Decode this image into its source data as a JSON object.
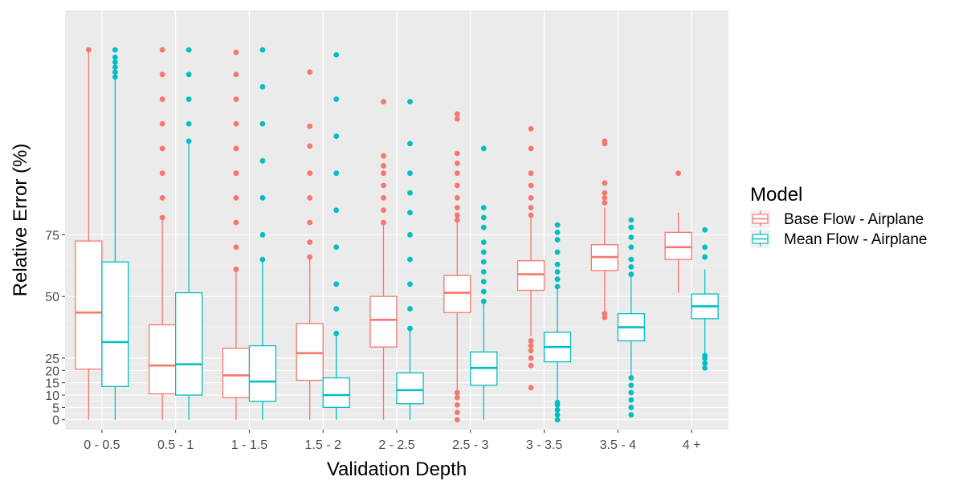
{
  "chart_data": {
    "type": "boxplot",
    "xlabel": "Validation Depth",
    "ylabel": "Relative Error (%)",
    "ylim": [
      -4,
      166
    ],
    "yticks": [
      0,
      5,
      10,
      15,
      20,
      25,
      50,
      75
    ],
    "grid": true,
    "legend_placement": "right",
    "legend_title": "Model",
    "categories": [
      "0 - 0.5",
      "0.5 - 1",
      "1 - 1.5",
      "1.5 - 2",
      "2 - 2.5",
      "2.5 - 3",
      "3 - 3.5",
      "3.5 - 4",
      "4 +"
    ],
    "series": [
      {
        "name": "Base Flow - Airplane",
        "color": "#F8766D",
        "boxes": [
          {
            "min": 0,
            "q1": 20.5,
            "median": 43.5,
            "q3": 72.5,
            "max": 150,
            "outliers": [
              150
            ]
          },
          {
            "min": 0,
            "q1": 10.5,
            "median": 22,
            "q3": 38.5,
            "max": 81,
            "outliers": [
              82,
              90,
              100,
              110,
              120,
              130,
              140,
              150
            ]
          },
          {
            "min": 0,
            "q1": 9,
            "median": 18,
            "q3": 29,
            "max": 60,
            "outliers": [
              61,
              70,
              80,
              90,
              100,
              110,
              120,
              130,
              140,
              149
            ]
          },
          {
            "min": 0,
            "q1": 16,
            "median": 27,
            "q3": 39,
            "max": 65,
            "outliers": [
              66,
              72,
              80,
              90,
              100,
              111,
              119,
              141
            ]
          },
          {
            "min": 0,
            "q1": 29.5,
            "median": 40.5,
            "q3": 50,
            "max": 79,
            "outliers": [
              80,
              85,
              90,
              95,
              100,
              103,
              107,
              129
            ]
          },
          {
            "min": 12,
            "q1": 43.5,
            "median": 51.5,
            "q3": 58.5,
            "max": 80,
            "outliers": [
              0,
              3,
              6,
              9,
              11,
              81,
              83,
              86,
              90,
              95,
              100,
              104,
              108,
              122,
              124
            ]
          },
          {
            "min": 34,
            "q1": 52.5,
            "median": 59,
            "q3": 64.5,
            "max": 82,
            "outliers": [
              13,
              22,
              25,
              28,
              30,
              32,
              83,
              86,
              90,
              95,
              100,
              110,
              118
            ]
          },
          {
            "min": 43,
            "q1": 60.5,
            "median": 66,
            "q3": 71,
            "max": 86,
            "outliers": [
              41.5,
              43,
              88,
              90,
              92,
              96,
              112,
              113
            ]
          },
          {
            "min": 51.5,
            "q1": 65,
            "median": 70,
            "q3": 76,
            "max": 84,
            "outliers": [
              100
            ]
          }
        ]
      },
      {
        "name": "Mean Flow - Airplane",
        "color": "#00BFC4",
        "boxes": [
          {
            "min": 0,
            "q1": 13.5,
            "median": 31.5,
            "q3": 64,
            "max": 139,
            "outliers": [
              139,
              141,
              143,
              145,
              147,
              150
            ]
          },
          {
            "min": 0,
            "q1": 10,
            "median": 22.5,
            "q3": 51.5,
            "max": 113,
            "outliers": [
              113,
              120,
              130,
              140,
              150
            ]
          },
          {
            "min": 0,
            "q1": 7.5,
            "median": 15.5,
            "q3": 30,
            "max": 64,
            "outliers": [
              65,
              75,
              90,
              105,
              120,
              135,
              150
            ]
          },
          {
            "min": 0,
            "q1": 5,
            "median": 10,
            "q3": 17,
            "max": 34,
            "outliers": [
              35,
              45,
              55,
              70,
              85,
              100,
              115,
              130,
              148
            ]
          },
          {
            "min": 0,
            "q1": 6.5,
            "median": 12,
            "q3": 19,
            "max": 36.5,
            "outliers": [
              37,
              45,
              55,
              65,
              75,
              84,
              92,
              100,
              112,
              129
            ]
          },
          {
            "min": 0,
            "q1": 14,
            "median": 21,
            "q3": 27.5,
            "max": 47,
            "outliers": [
              48,
              52,
              56,
              60,
              64,
              68,
              72,
              78,
              82,
              86,
              110
            ]
          },
          {
            "min": 0,
            "q1": 23.5,
            "median": 29.5,
            "q3": 35.5,
            "max": 53,
            "outliers": [
              0,
              2,
              4,
              6,
              7,
              54,
              57,
              60,
              63,
              68,
              73,
              76,
              79
            ]
          },
          {
            "min": 18,
            "q1": 32,
            "median": 37.5,
            "q3": 43,
            "max": 58,
            "outliers": [
              2,
              5,
              8,
              11,
              14,
              17,
              59,
              62,
              65,
              70,
              74,
              78,
              81
            ]
          },
          {
            "min": 27,
            "q1": 41,
            "median": 46,
            "q3": 51,
            "max": 61,
            "outliers": [
              21,
              23,
              25,
              26,
              66,
              70,
              77
            ]
          }
        ]
      }
    ]
  }
}
